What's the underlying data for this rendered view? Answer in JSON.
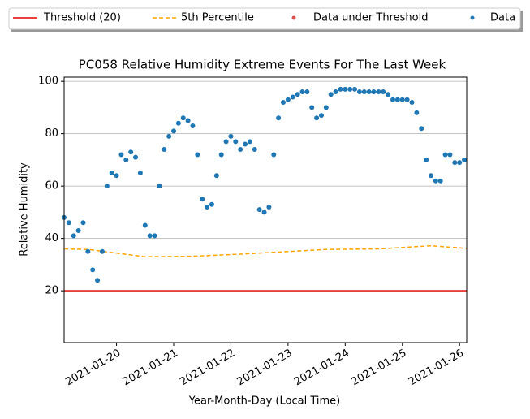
{
  "chart_data": {
    "type": "scatter",
    "title": "PC058 Relative Humidity Extreme Events For The Last Week",
    "xlabel": "Year-Month-Day (Local Time)",
    "ylabel": "Relative Humidity",
    "xlim": [
      "2021-01-19 02:00",
      "2021-01-26 03:00"
    ],
    "xticks": [
      "2021-01-20",
      "2021-01-21",
      "2021-01-22",
      "2021-01-23",
      "2021-01-24",
      "2021-01-25",
      "2021-01-26"
    ],
    "ylim": [
      0.2,
      101.6
    ],
    "yticks": [
      20,
      40,
      60,
      80,
      100
    ],
    "grid": "y",
    "legend": "top",
    "threshold": {
      "name": "Threshold (20)",
      "value": 20,
      "color": "#e8413c"
    },
    "percentile": {
      "name": "5th Percentile",
      "color": "#ffa500",
      "x": [
        "2021-01-19 02:00",
        "2021-01-19 12:00",
        "2021-01-20 12:00",
        "2021-01-21 08:00",
        "2021-01-22 04:00",
        "2021-01-23 00:00",
        "2021-01-23 16:00",
        "2021-01-24 14:00",
        "2021-01-25 12:00",
        "2021-01-26 03:00"
      ],
      "values": [
        36,
        35.8,
        33,
        33.2,
        34,
        35,
        35.8,
        36,
        37.2,
        36.2
      ]
    },
    "series": [
      {
        "name": "Data under Threshold",
        "color": "#d9534f",
        "x": [],
        "values": []
      },
      {
        "name": "Data",
        "color": "#1f77b4",
        "x": [
          "2021-01-19 02:00",
          "2021-01-19 04:00",
          "2021-01-19 06:00",
          "2021-01-19 08:00",
          "2021-01-19 10:00",
          "2021-01-19 12:00",
          "2021-01-19 14:00",
          "2021-01-19 16:00",
          "2021-01-19 18:00",
          "2021-01-19 20:00",
          "2021-01-19 22:00",
          "2021-01-20 00:00",
          "2021-01-20 02:00",
          "2021-01-20 04:00",
          "2021-01-20 06:00",
          "2021-01-20 08:00",
          "2021-01-20 10:00",
          "2021-01-20 12:00",
          "2021-01-20 14:00",
          "2021-01-20 16:00",
          "2021-01-20 18:00",
          "2021-01-20 20:00",
          "2021-01-20 22:00",
          "2021-01-21 00:00",
          "2021-01-21 02:00",
          "2021-01-21 04:00",
          "2021-01-21 06:00",
          "2021-01-21 08:00",
          "2021-01-21 10:00",
          "2021-01-21 12:00",
          "2021-01-21 14:00",
          "2021-01-21 16:00",
          "2021-01-21 18:00",
          "2021-01-21 20:00",
          "2021-01-21 22:00",
          "2021-01-22 00:00",
          "2021-01-22 02:00",
          "2021-01-22 04:00",
          "2021-01-22 06:00",
          "2021-01-22 08:00",
          "2021-01-22 10:00",
          "2021-01-22 12:00",
          "2021-01-22 14:00",
          "2021-01-22 16:00",
          "2021-01-22 18:00",
          "2021-01-22 20:00",
          "2021-01-22 22:00",
          "2021-01-23 00:00",
          "2021-01-23 02:00",
          "2021-01-23 04:00",
          "2021-01-23 06:00",
          "2021-01-23 08:00",
          "2021-01-23 10:00",
          "2021-01-23 12:00",
          "2021-01-23 14:00",
          "2021-01-23 16:00",
          "2021-01-23 18:00",
          "2021-01-23 20:00",
          "2021-01-23 22:00",
          "2021-01-24 00:00",
          "2021-01-24 02:00",
          "2021-01-24 04:00",
          "2021-01-24 06:00",
          "2021-01-24 08:00",
          "2021-01-24 10:00",
          "2021-01-24 12:00",
          "2021-01-24 14:00",
          "2021-01-24 16:00",
          "2021-01-24 18:00",
          "2021-01-24 20:00",
          "2021-01-24 22:00",
          "2021-01-25 00:00",
          "2021-01-25 02:00",
          "2021-01-25 04:00",
          "2021-01-25 06:00",
          "2021-01-25 08:00",
          "2021-01-25 10:00",
          "2021-01-25 12:00",
          "2021-01-25 14:00",
          "2021-01-25 16:00",
          "2021-01-25 18:00",
          "2021-01-25 20:00",
          "2021-01-25 22:00",
          "2021-01-26 00:00",
          "2021-01-26 02:00"
        ],
        "values": [
          48,
          46,
          41,
          43,
          46,
          35,
          28,
          24,
          35,
          60,
          65,
          64,
          72,
          70,
          73,
          71,
          65,
          45,
          41,
          41,
          60,
          74,
          79,
          81,
          84,
          86,
          85,
          83,
          72,
          55,
          52,
          53,
          64,
          72,
          77,
          79,
          77,
          74,
          76,
          77,
          74,
          51,
          50,
          52,
          72,
          86,
          92,
          93,
          94,
          95,
          96,
          96,
          90,
          86,
          87,
          90,
          95,
          96,
          97,
          97,
          97,
          97,
          96,
          96,
          96,
          96,
          96,
          96,
          95,
          93,
          93,
          93,
          93,
          92,
          88,
          82,
          70,
          64,
          62,
          62,
          72,
          72,
          69,
          69,
          70
        ]
      }
    ]
  }
}
